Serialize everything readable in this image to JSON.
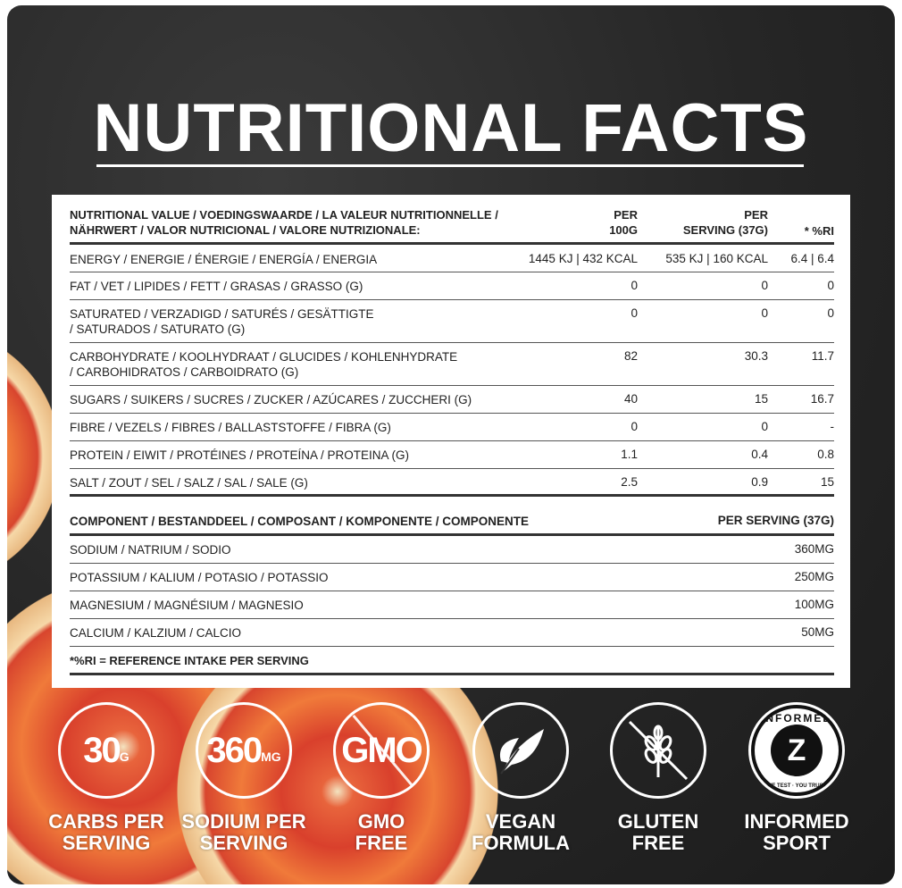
{
  "title": "NUTRITIONAL FACTS",
  "table": {
    "header": {
      "label_line1": "NUTRITIONAL VALUE / VOEDINGSWAARDE / LA VALEUR NUTRITIONNELLE /",
      "label_line2": "NÄHRWERT / VALOR NUTRICIONAL / VALORE NUTRIZIONALE:",
      "per100_line1": "PER",
      "per100_line2": "100G",
      "serving_line1": "PER",
      "serving_line2": "SERVING (37G)",
      "ri": "* %RI"
    },
    "rows": [
      {
        "l1": "ENERGY / ENERGIE / ÉNERGIE / ENERGÍA / ENERGIA",
        "l2": "",
        "per100": "1445 KJ | 432 KCAL",
        "serving": "535 KJ | 160 KCAL",
        "ri": "6.4 | 6.4"
      },
      {
        "l1": "FAT / VET / LIPIDES / FETT / GRASAS / GRASSO (G)",
        "l2": "",
        "per100": "0",
        "serving": "0",
        "ri": "0"
      },
      {
        "l1": "SATURATED / VERZADIGD / SATURÉS / GESÄTTIGTE",
        "l2": "/ SATURADOS / SATURATO (G)",
        "per100": "0",
        "serving": "0",
        "ri": "0"
      },
      {
        "l1": "CARBOHYDRATE / KOOLHYDRAAT / GLUCIDES / KOHLENHYDRATE",
        "l2": "/ CARBOHIDRATOS / CARBOIDRATO (G)",
        "per100": "82",
        "serving": "30.3",
        "ri": "11.7"
      },
      {
        "l1": "SUGARS / SUIKERS / SUCRES / ZUCKER / AZÚCARES / ZUCCHERI (G)",
        "l2": "",
        "per100": "40",
        "serving": "15",
        "ri": "16.7"
      },
      {
        "l1": "FIBRE / VEZELS / FIBRES / BALLASTSTOFFE / FIBRA (G)",
        "l2": "",
        "per100": "0",
        "serving": "0",
        "ri": "-"
      },
      {
        "l1": "PROTEIN / EIWIT / PROTÉINES / PROTEÍNA / PROTEINA (G)",
        "l2": "",
        "per100": "1.1",
        "serving": "0.4",
        "ri": "0.8"
      },
      {
        "l1": "SALT / ZOUT / SEL / SALZ / SAL / SALE (G)",
        "l2": "",
        "per100": "2.5",
        "serving": "0.9",
        "ri": "15"
      }
    ],
    "component_header": {
      "label": "COMPONENT / BESTANDDEEL / COMPOSANT / KOMPONENTE / COMPONENTE",
      "serving": "PER SERVING (37G)"
    },
    "components": [
      {
        "label": "SODIUM / NATRIUM / SODIO",
        "value": "360MG"
      },
      {
        "label": "POTASSIUM / KALIUM / POTASIO / POTASSIO",
        "value": "250MG"
      },
      {
        "label": "MAGNESIUM / MAGNÉSIUM / MAGNESIO",
        "value": "100MG"
      },
      {
        "label": "CALCIUM / KALZIUM / CALCIO",
        "value": "50MG"
      }
    ],
    "footnote": "*%RI = REFERENCE INTAKE PER SERVING"
  },
  "badges": [
    {
      "icon": "carbs-30g-icon",
      "num": "30",
      "unit": "G",
      "l1": "CARBS PER",
      "l2": "SERVING"
    },
    {
      "icon": "sodium-360mg-icon",
      "num": "360",
      "unit": "MG",
      "l1": "SODIUM PER",
      "l2": "SERVING"
    },
    {
      "icon": "gmo-free-icon",
      "num": "GMO",
      "unit": "",
      "l1": "GMO",
      "l2": "FREE"
    },
    {
      "icon": "leaf-icon",
      "l1": "VEGAN",
      "l2": "FORMULA"
    },
    {
      "icon": "gluten-free-wheat-icon",
      "l1": "GLUTEN",
      "l2": "FREE"
    },
    {
      "icon": "informed-sport-logo",
      "logo_text": "INFORMED",
      "logo_sub": "WE TEST · YOU TRUST",
      "l1": "INFORMED",
      "l2": "SPORT"
    }
  ]
}
